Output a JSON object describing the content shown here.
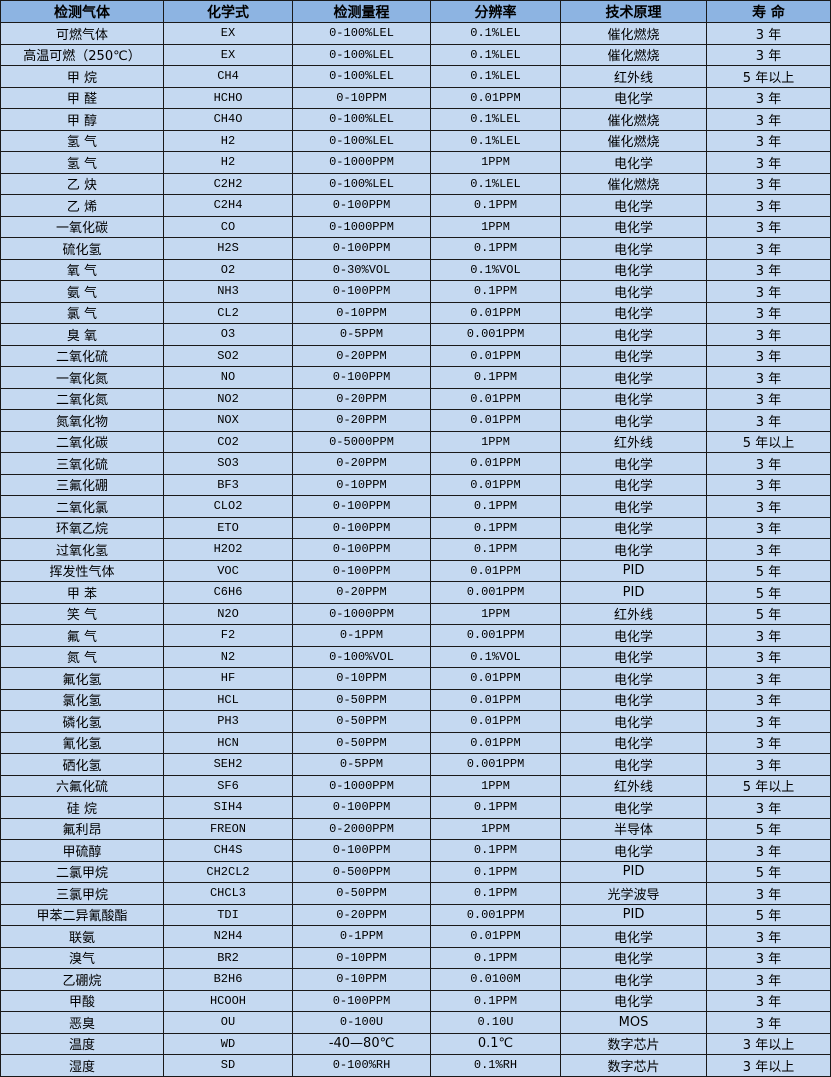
{
  "table": {
    "headers": [
      "检测气体",
      "化学式",
      "检测量程",
      "分辨率",
      "技术原理",
      "寿  命"
    ],
    "rows": [
      [
        "可燃气体",
        "EX",
        "0-100%LEL",
        "0.1%LEL",
        "催化燃烧",
        "3 年"
      ],
      [
        "高温可燃（250℃）",
        "EX",
        "0-100%LEL",
        "0.1%LEL",
        "催化燃烧",
        "3 年"
      ],
      [
        "甲 烷",
        "CH4",
        "0-100%LEL",
        "0.1%LEL",
        "红外线",
        "5 年以上"
      ],
      [
        "甲 醛",
        "HCHO",
        "0-10PPM",
        "0.01PPM",
        "电化学",
        "3 年"
      ],
      [
        "甲 醇",
        "CH4O",
        "0-100%LEL",
        "0.1%LEL",
        "催化燃烧",
        "3 年"
      ],
      [
        "氢 气",
        "H2",
        "0-100%LEL",
        "0.1%LEL",
        "催化燃烧",
        "3 年"
      ],
      [
        "氢 气",
        "H2",
        "0-1000PPM",
        "1PPM",
        "电化学",
        "3 年"
      ],
      [
        "乙 炔",
        "C2H2",
        "0-100%LEL",
        "0.1%LEL",
        "催化燃烧",
        "3 年"
      ],
      [
        "乙 烯",
        "C2H4",
        "0-100PPM",
        "0.1PPM",
        "电化学",
        "3 年"
      ],
      [
        "一氧化碳",
        "CO",
        "0-1000PPM",
        "1PPM",
        "电化学",
        "3 年"
      ],
      [
        "硫化氢",
        "H2S",
        "0-100PPM",
        "0.1PPM",
        "电化学",
        "3 年"
      ],
      [
        "氧 气",
        "O2",
        "0-30%VOL",
        "0.1%VOL",
        "电化学",
        "3 年"
      ],
      [
        "氨 气",
        "NH3",
        "0-100PPM",
        "0.1PPM",
        "电化学",
        "3 年"
      ],
      [
        "氯 气",
        "CL2",
        "0-10PPM",
        "0.01PPM",
        "电化学",
        "3 年"
      ],
      [
        "臭 氧",
        "O3",
        "0-5PPM",
        "0.001PPM",
        "电化学",
        "3 年"
      ],
      [
        "二氧化硫",
        "SO2",
        "0-20PPM",
        "0.01PPM",
        "电化学",
        "3 年"
      ],
      [
        "一氧化氮",
        "NO",
        "0-100PPM",
        "0.1PPM",
        "电化学",
        "3 年"
      ],
      [
        "二氧化氮",
        "NO2",
        "0-20PPM",
        "0.01PPM",
        "电化学",
        "3 年"
      ],
      [
        "氮氧化物",
        "NOX",
        "0-20PPM",
        "0.01PPM",
        "电化学",
        "3 年"
      ],
      [
        "二氧化碳",
        "CO2",
        "0-5000PPM",
        "1PPM",
        "红外线",
        "5 年以上"
      ],
      [
        "三氧化硫",
        "SO3",
        "0-20PPM",
        "0.01PPM",
        "电化学",
        "3 年"
      ],
      [
        "三氟化硼",
        "BF3",
        "0-10PPM",
        "0.01PPM",
        "电化学",
        "3 年"
      ],
      [
        "二氧化氯",
        "CLO2",
        "0-100PPM",
        "0.1PPM",
        "电化学",
        "3 年"
      ],
      [
        "环氧乙烷",
        "ETO",
        "0-100PPM",
        "0.1PPM",
        "电化学",
        "3 年"
      ],
      [
        "过氧化氢",
        "H2O2",
        "0-100PPM",
        "0.1PPM",
        "电化学",
        "3 年"
      ],
      [
        "挥发性气体",
        "VOC",
        "0-100PPM",
        "0.01PPM",
        "PID",
        "5 年"
      ],
      [
        "甲 苯",
        "C6H6",
        "0-20PPM",
        "0.001PPM",
        "PID",
        "5 年"
      ],
      [
        "笑 气",
        "N2O",
        "0-1000PPM",
        "1PPM",
        "红外线",
        "5 年"
      ],
      [
        "氟 气",
        "F2",
        "0-1PPM",
        "0.001PPM",
        "电化学",
        "3 年"
      ],
      [
        "氮 气",
        "N2",
        "0-100%VOL",
        "0.1%VOL",
        "电化学",
        "3 年"
      ],
      [
        "氟化氢",
        "HF",
        "0-10PPM",
        "0.01PPM",
        "电化学",
        "3 年"
      ],
      [
        "氯化氢",
        "HCL",
        "0-50PPM",
        "0.01PPM",
        "电化学",
        "3 年"
      ],
      [
        "磷化氢",
        "PH3",
        "0-50PPM",
        "0.01PPM",
        "电化学",
        "3 年"
      ],
      [
        "氰化氢",
        "HCN",
        "0-50PPM",
        "0.01PPM",
        "电化学",
        "3 年"
      ],
      [
        "硒化氢",
        "SEH2",
        "0-5PPM",
        "0.001PPM",
        "电化学",
        "3 年"
      ],
      [
        "六氟化硫",
        "SF6",
        "0-1000PPM",
        "1PPM",
        "红外线",
        "5 年以上"
      ],
      [
        "硅 烷",
        "SIH4",
        "0-100PPM",
        "0.1PPM",
        "电化学",
        "3 年"
      ],
      [
        "氟利昂",
        "FREON",
        "0-2000PPM",
        "1PPM",
        "半导体",
        "5 年"
      ],
      [
        "甲硫醇",
        "CH4S",
        "0-100PPM",
        "0.1PPM",
        "电化学",
        "3 年"
      ],
      [
        "二氯甲烷",
        "CH2CL2",
        "0-500PPM",
        "0.1PPM",
        "PID",
        "5 年"
      ],
      [
        "三氯甲烷",
        "CHCL3",
        "0-50PPM",
        "0.1PPM",
        "光学波导",
        "3 年"
      ],
      [
        "甲苯二异氰酸酯",
        "TDI",
        "0-20PPM",
        "0.001PPM",
        "PID",
        "5 年"
      ],
      [
        "联氨",
        "N2H4",
        "0-1PPM",
        "0.01PPM",
        "电化学",
        "3 年"
      ],
      [
        "溴气",
        "BR2",
        "0-10PPM",
        "0.1PPM",
        "电化学",
        "3 年"
      ],
      [
        "乙硼烷",
        "B2H6",
        "0-10PPM",
        "0.0100M",
        "电化学",
        "3 年"
      ],
      [
        "甲酸",
        "HCOOH",
        "0-100PPM",
        "0.1PPM",
        "电化学",
        "3 年"
      ],
      [
        "恶臭",
        "OU",
        "0-100U",
        "0.10U",
        "MOS",
        "3 年"
      ],
      [
        "温度",
        "WD",
        "-40—80℃",
        "0.1℃",
        "数字芯片",
        "3 年以上"
      ],
      [
        "湿度",
        "SD",
        "0-100%RH",
        "0.1%RH",
        "数字芯片",
        "3 年以上"
      ]
    ]
  },
  "colors": {
    "header_bg": "#8db4e2",
    "row_bg": "#c5d9f1",
    "border": "#1a1a1a"
  }
}
